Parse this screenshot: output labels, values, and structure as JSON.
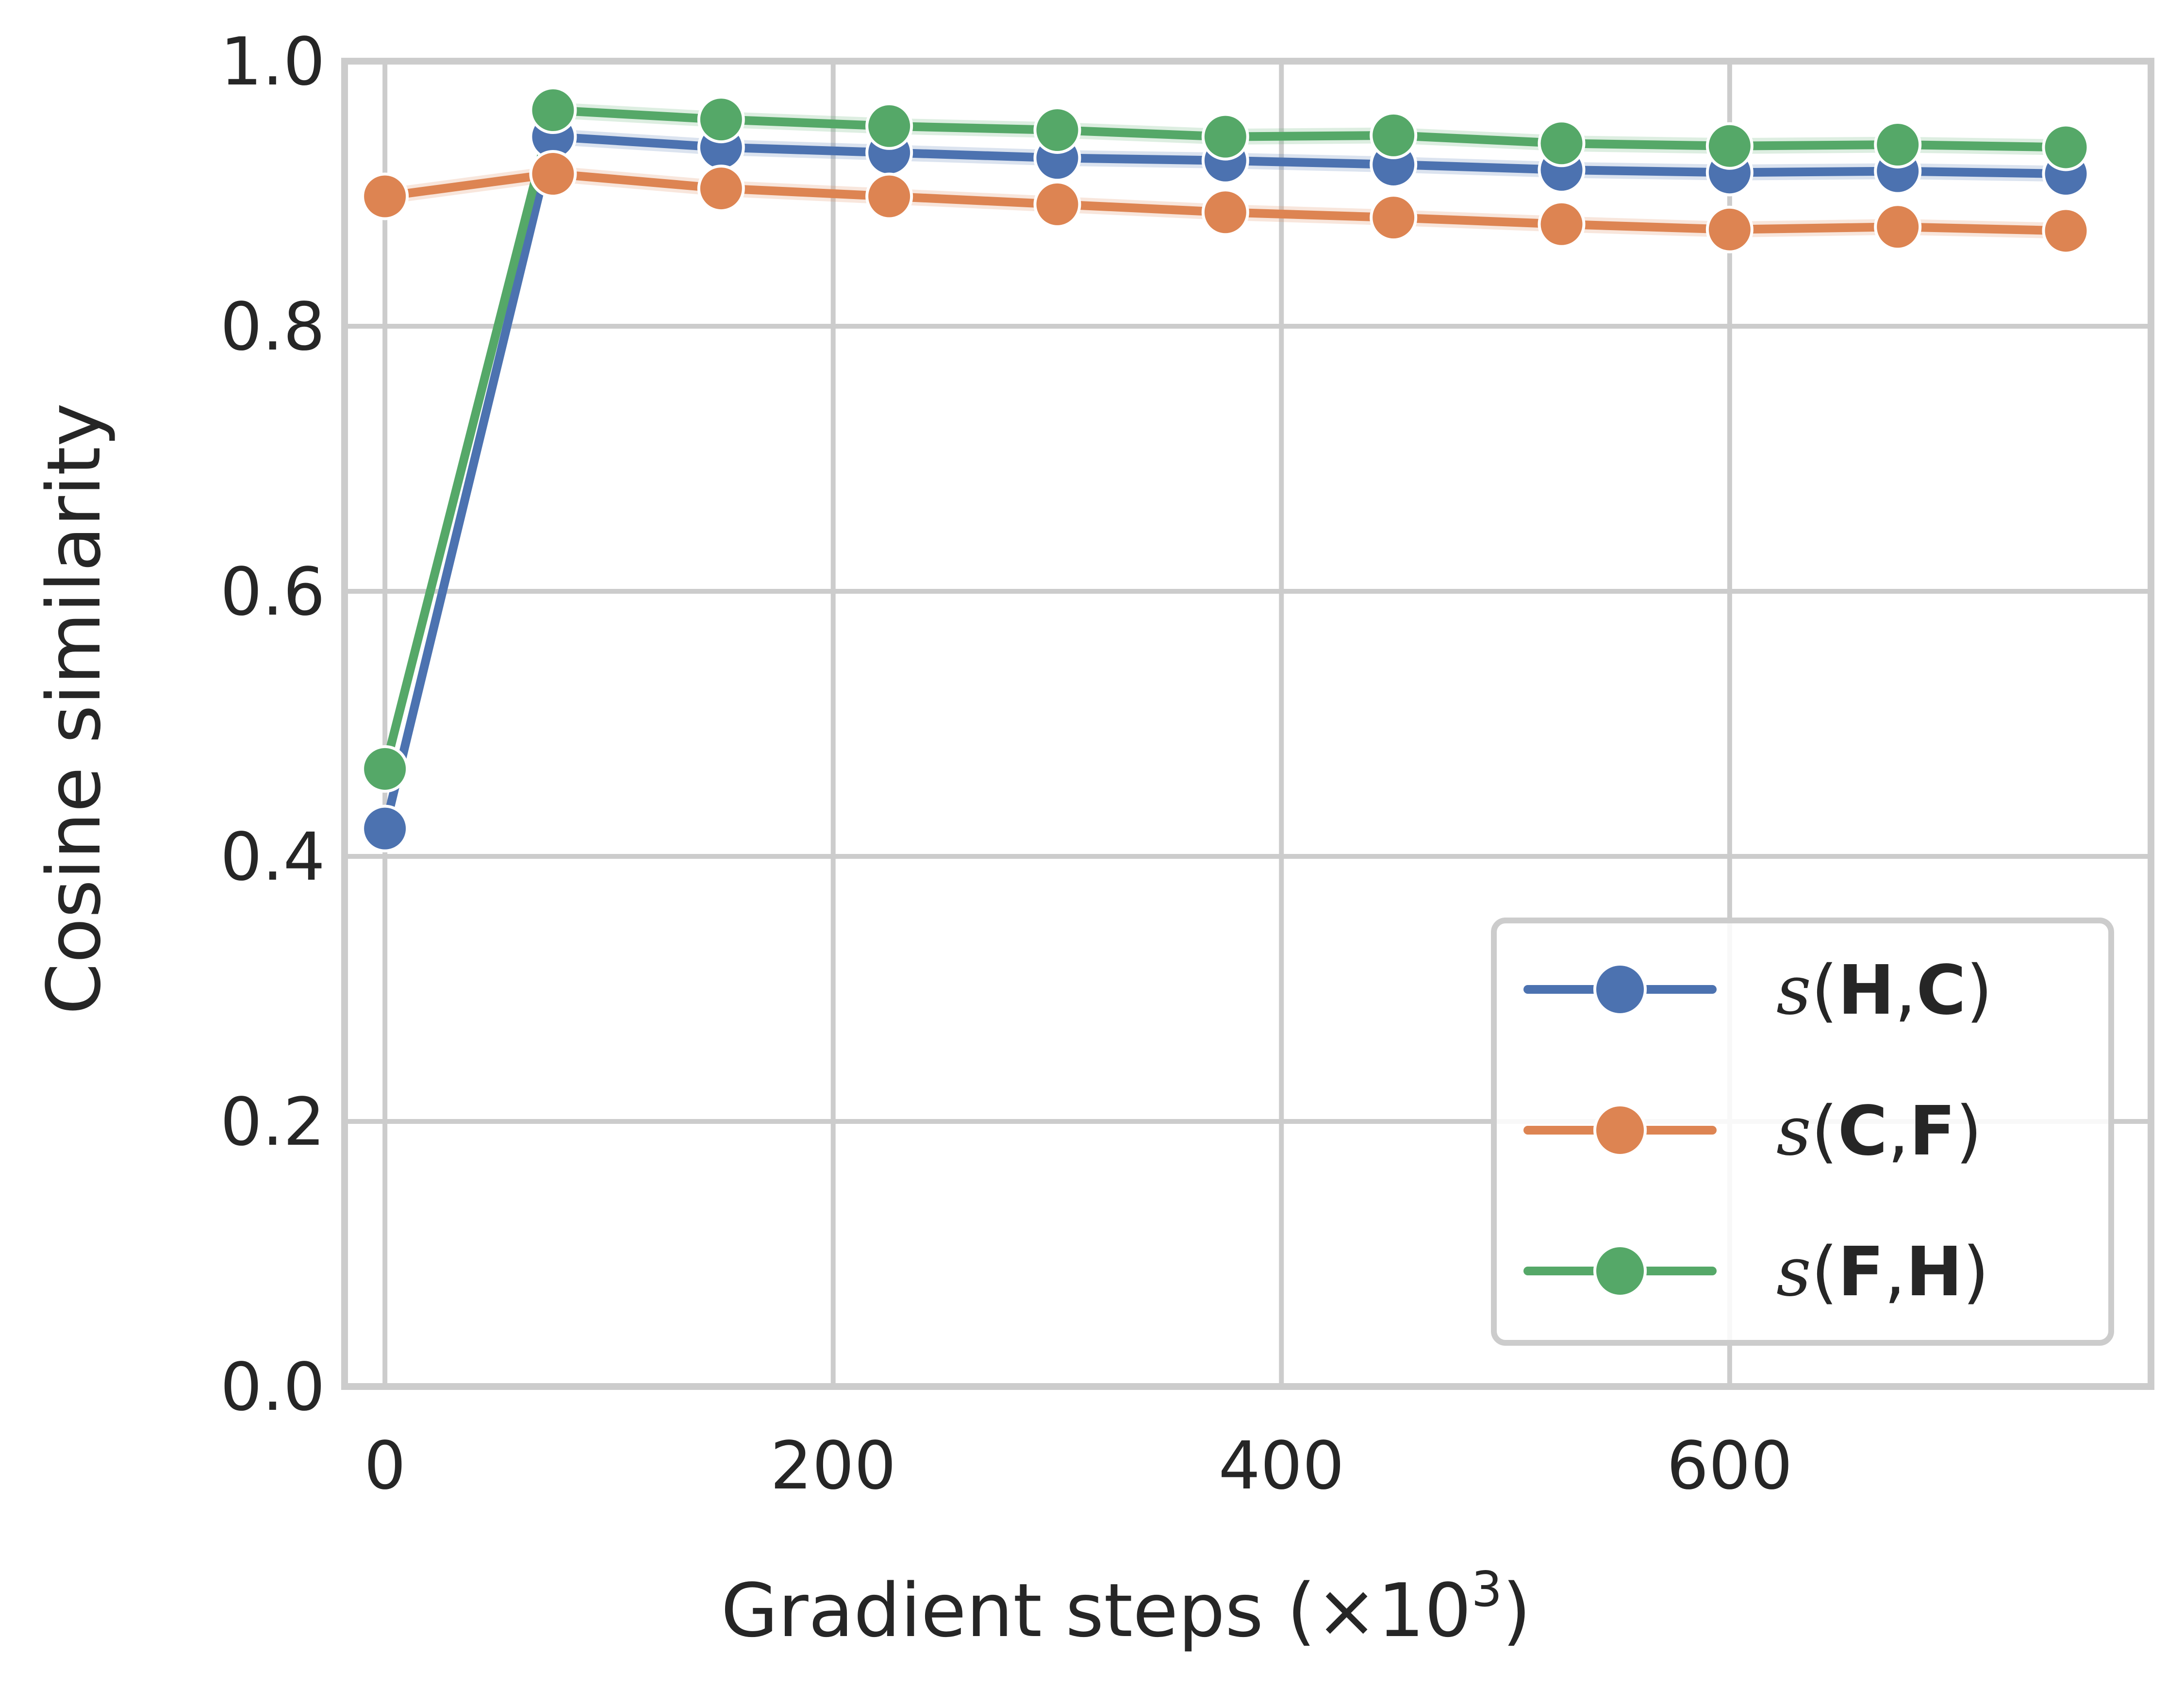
{
  "chart_data": {
    "type": "line",
    "xlabel": "Gradient steps (×10",
    "xlabel_sup": "3",
    "xlabel_close": ")",
    "ylabel": "Cosine similarity",
    "xlim": [
      -18,
      788
    ],
    "ylim": [
      0.0,
      1.0
    ],
    "x_ticks": [
      "0",
      "200",
      "400",
      "600"
    ],
    "y_ticks": [
      "0.0",
      "0.2",
      "0.4",
      "0.6",
      "0.8",
      "1.0"
    ],
    "grid": true,
    "legend_position": "lower-right",
    "x": [
      0,
      75,
      150,
      225,
      300,
      375,
      450,
      525,
      600,
      675,
      750
    ],
    "series": [
      {
        "name": "s(H,C)",
        "name_parts": [
          "s",
          "(",
          "H",
          ",",
          "C",
          ")"
        ],
        "color": "#4c72b0",
        "values": [
          0.421,
          0.943,
          0.935,
          0.931,
          0.927,
          0.925,
          0.922,
          0.918,
          0.916,
          0.917,
          0.915
        ]
      },
      {
        "name": "s(C,F)",
        "name_parts": [
          "s",
          "(",
          "C",
          ",",
          "F",
          ")"
        ],
        "color": "#dd8452",
        "values": [
          0.898,
          0.915,
          0.904,
          0.898,
          0.892,
          0.886,
          0.882,
          0.877,
          0.873,
          0.875,
          0.872
        ]
      },
      {
        "name": "s(F,H)",
        "name_parts": [
          "s",
          "(",
          "F",
          ",",
          "H",
          ")"
        ],
        "color": "#55a868",
        "values": [
          0.466,
          0.963,
          0.956,
          0.951,
          0.948,
          0.943,
          0.944,
          0.938,
          0.936,
          0.937,
          0.935
        ]
      }
    ]
  }
}
